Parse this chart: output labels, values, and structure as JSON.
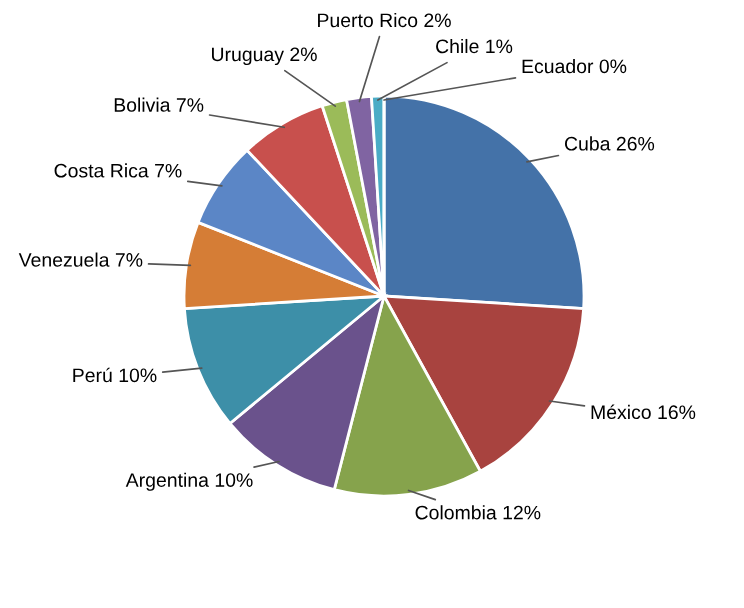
{
  "chart_data": {
    "type": "pie",
    "categories": [
      "Cuba",
      "México",
      "Colombia",
      "Argentina",
      "Perú",
      "Venezuela",
      "Costa Rica",
      "Bolivia",
      "Uruguay",
      "Puerto Rico",
      "Chile",
      "Ecuador"
    ],
    "values": [
      26,
      16,
      12,
      10,
      10,
      7,
      7,
      7,
      2,
      2,
      1,
      0
    ],
    "value_labels": [
      "26%",
      "16%",
      "12%",
      "10%",
      "10%",
      "7%",
      "7%",
      "7%",
      "2%",
      "2%",
      "1%",
      "0%"
    ],
    "colors": [
      "#4472a8",
      "#a8433f",
      "#86a34c",
      "#6a528c",
      "#3d8fa8",
      "#d57d36",
      "#5b86c6",
      "#c8504d",
      "#9bbb59",
      "#8064a2",
      "#4bacc6",
      "#f79646"
    ],
    "legend": false
  }
}
